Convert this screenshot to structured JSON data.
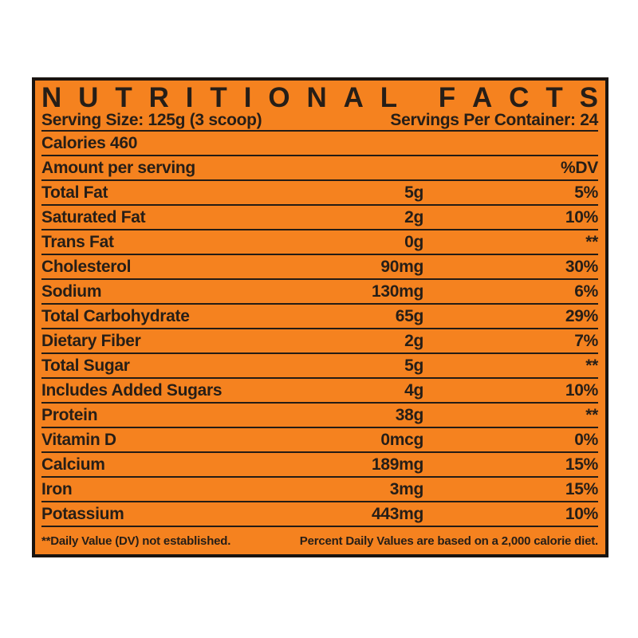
{
  "label": {
    "title": "NUTRITIONAL FACTS",
    "serving_size": "Serving Size: 125g (3 scoop)",
    "servings_per_container": "Servings Per Container: 24",
    "calories": "Calories 460",
    "header": {
      "amount": "Amount per serving",
      "dv": "%DV"
    },
    "rows": [
      {
        "label": "Total Fat",
        "amount": "5g",
        "dv": "5%"
      },
      {
        "label": "Saturated Fat",
        "amount": "2g",
        "dv": "10%"
      },
      {
        "label": "Trans Fat",
        "amount": "0g",
        "dv": "**"
      },
      {
        "label": "Cholesterol",
        "amount": "90mg",
        "dv": "30%"
      },
      {
        "label": "Sodium",
        "amount": "130mg",
        "dv": "6%"
      },
      {
        "label": "Total Carbohydrate",
        "amount": "65g",
        "dv": "29%"
      },
      {
        "label": "Dietary Fiber",
        "amount": "2g",
        "dv": "7%"
      },
      {
        "label": "Total Sugar",
        "amount": "5g",
        "dv": "**"
      },
      {
        "label": "Includes Added Sugars",
        "amount": "4g",
        "dv": "10%"
      },
      {
        "label": "Protein",
        "amount": "38g",
        "dv": "**"
      },
      {
        "label": "Vitamin D",
        "amount": "0mcg",
        "dv": "0%"
      },
      {
        "label": "Calcium",
        "amount": "189mg",
        "dv": "15%"
      },
      {
        "label": "Iron",
        "amount": "3mg",
        "dv": "15%"
      },
      {
        "label": "Potassium",
        "amount": "443mg",
        "dv": "10%"
      }
    ],
    "footnotes": {
      "left": "**Daily Value (DV) not established.",
      "right": "Percent Daily Values are based on a 2,000 calorie diet."
    },
    "colors": {
      "page_background": "#FFFFFF",
      "label_background": "#F5821F",
      "text": "#261E17",
      "border": "#1A1410",
      "divider": "#241C15"
    }
  }
}
